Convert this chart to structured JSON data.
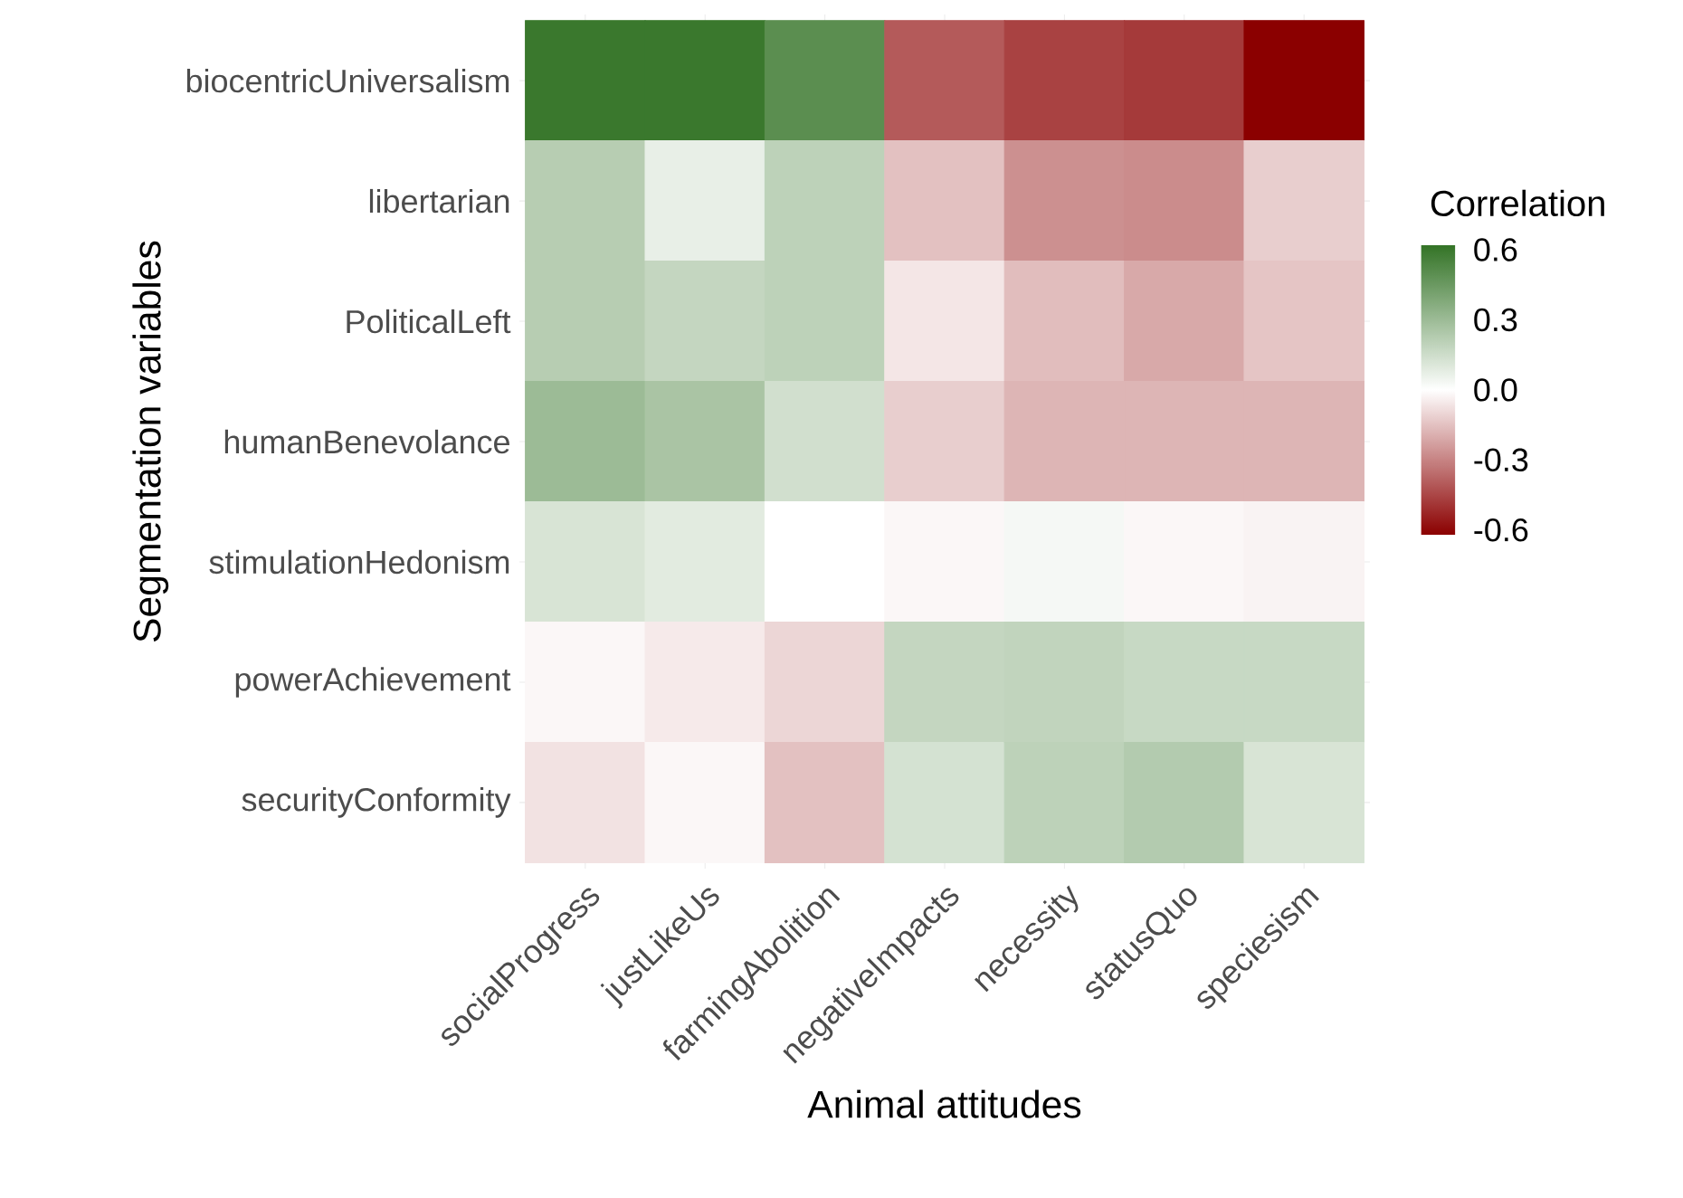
{
  "chart_data": {
    "type": "heatmap",
    "xlabel": "Animal attitudes",
    "ylabel": "Segmentation variables",
    "clabel": "Correlation",
    "categories": [
      "socialProgress",
      "justLikeUs",
      "farmingAbolition",
      "negativeImpacts",
      "necessity",
      "statusQuo",
      "speciesism"
    ],
    "y_categories": [
      "biocentricUniversalism",
      "libertarian",
      "PoliticalLeft",
      "humanBenevolance",
      "stimulationHedonism",
      "powerAchievement",
      "securityConformity"
    ],
    "cells": [
      [
        0.6,
        0.6,
        0.5,
        -0.4,
        -0.46,
        -0.48,
        -0.62
      ],
      [
        0.22,
        0.07,
        0.2,
        -0.15,
        -0.27,
        -0.28,
        -0.12
      ],
      [
        0.22,
        0.18,
        0.2,
        -0.06,
        -0.16,
        -0.21,
        -0.14
      ],
      [
        0.3,
        0.26,
        0.14,
        -0.12,
        -0.18,
        -0.18,
        -0.18
      ],
      [
        0.12,
        0.09,
        0.0,
        -0.02,
        0.03,
        -0.02,
        -0.03
      ],
      [
        -0.02,
        -0.05,
        -0.1,
        0.18,
        0.19,
        0.17,
        0.17
      ],
      [
        -0.07,
        -0.02,
        -0.15,
        0.13,
        0.2,
        0.23,
        0.12
      ]
    ],
    "clim": [
      -0.62,
      0.62
    ],
    "cticks": [
      0.6,
      0.3,
      {
        "value": 0,
        "label": "0.0"
      },
      -0.3,
      -0.6
    ],
    "grid": true
  }
}
